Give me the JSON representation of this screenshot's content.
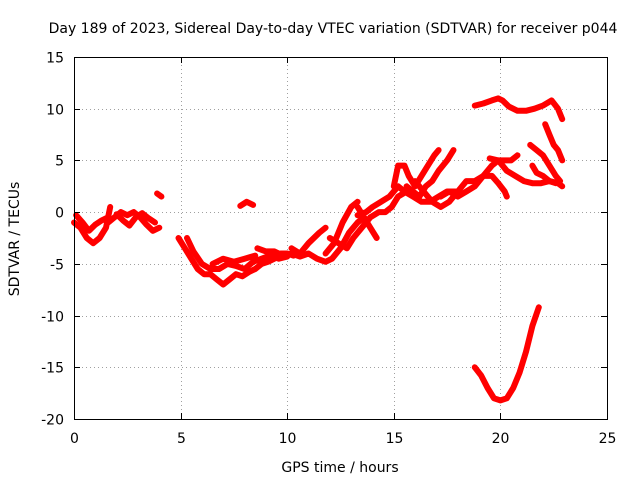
{
  "chart_data": {
    "type": "scatter",
    "title": "Day 189 of 2023, Sidereal Day-to-day VTEC variation (SDTVAR) for receiver p044",
    "xlabel": "GPS time / hours",
    "ylabel": "SDTVAR / TECUs",
    "xlim": [
      0,
      25
    ],
    "ylim": [
      -20,
      15
    ],
    "xticks": [
      0,
      5,
      10,
      15,
      20,
      25
    ],
    "yticks": [
      -20,
      -15,
      -10,
      -5,
      0,
      5,
      10,
      15
    ],
    "xtick_labels": [
      "0",
      "5",
      "10",
      "15",
      "20",
      "25"
    ],
    "ytick_labels": [
      "-20",
      "-15",
      "-10",
      "-5",
      "0",
      "5",
      "10",
      "15"
    ],
    "grid": true,
    "legend": "none",
    "color": "#ff0000",
    "series": [
      {
        "points": [
          [
            0.0,
            -1.0
          ],
          [
            0.3,
            -1.5
          ],
          [
            0.6,
            -2.5
          ],
          [
            0.9,
            -3.0
          ],
          [
            1.2,
            -2.5
          ],
          [
            1.5,
            -1.5
          ],
          [
            1.7,
            0.5
          ]
        ]
      },
      {
        "points": [
          [
            0.1,
            -0.3
          ],
          [
            0.4,
            -1.0
          ],
          [
            0.7,
            -1.8
          ],
          [
            1.0,
            -1.2
          ],
          [
            1.3,
            -0.8
          ],
          [
            1.6,
            -0.5
          ]
        ]
      },
      {
        "points": [
          [
            1.6,
            -1.0
          ],
          [
            1.9,
            -0.5
          ],
          [
            2.2,
            0.0
          ],
          [
            2.5,
            -0.3
          ],
          [
            2.8,
            0.0
          ],
          [
            3.1,
            -0.5
          ],
          [
            3.4,
            -1.2
          ],
          [
            3.7,
            -1.8
          ],
          [
            4.0,
            -1.5
          ]
        ]
      },
      {
        "points": [
          [
            2.0,
            -0.2
          ],
          [
            2.3,
            -0.8
          ],
          [
            2.6,
            -1.3
          ],
          [
            2.9,
            -0.5
          ],
          [
            3.2,
            -0.1
          ],
          [
            3.5,
            -0.6
          ],
          [
            3.8,
            -1.0
          ]
        ]
      },
      {
        "points": [
          [
            3.9,
            1.8
          ],
          [
            4.1,
            1.5
          ]
        ]
      },
      {
        "points": [
          [
            4.9,
            -2.5
          ],
          [
            5.2,
            -3.5
          ],
          [
            5.5,
            -4.5
          ],
          [
            5.8,
            -5.5
          ],
          [
            6.1,
            -6.0
          ],
          [
            6.4,
            -6.0
          ],
          [
            6.7,
            -6.5
          ],
          [
            7.0,
            -7.0
          ],
          [
            7.3,
            -6.5
          ],
          [
            7.6,
            -6.0
          ],
          [
            7.9,
            -6.2
          ],
          [
            8.2,
            -5.8
          ],
          [
            8.5,
            -5.5
          ],
          [
            8.8,
            -5.0
          ],
          [
            9.1,
            -4.8
          ],
          [
            9.4,
            -4.5
          ],
          [
            9.7,
            -4.0
          ],
          [
            10.0,
            -4.0
          ],
          [
            10.3,
            -4.2
          ]
        ]
      },
      {
        "points": [
          [
            5.3,
            -2.5
          ],
          [
            5.6,
            -3.8
          ],
          [
            6.0,
            -5.0
          ],
          [
            6.4,
            -5.5
          ],
          [
            6.8,
            -5.5
          ],
          [
            7.2,
            -5.0
          ],
          [
            7.6,
            -5.2
          ],
          [
            8.0,
            -5.5
          ],
          [
            8.4,
            -4.8
          ],
          [
            8.8,
            -4.5
          ],
          [
            9.2,
            -4.2
          ],
          [
            9.6,
            -4.5
          ],
          [
            10.0,
            -4.3
          ]
        ]
      },
      {
        "points": [
          [
            6.5,
            -5.0
          ],
          [
            7.0,
            -4.5
          ],
          [
            7.5,
            -4.8
          ],
          [
            8.0,
            -4.5
          ],
          [
            8.5,
            -4.2
          ]
        ]
      },
      {
        "points": [
          [
            7.8,
            0.6
          ],
          [
            8.1,
            1.0
          ],
          [
            8.4,
            0.7
          ]
        ]
      },
      {
        "points": [
          [
            8.6,
            -3.5
          ],
          [
            9.0,
            -3.8
          ],
          [
            9.4,
            -3.8
          ],
          [
            9.8,
            -4.2
          ],
          [
            10.2,
            -4.0
          ],
          [
            10.6,
            -4.3
          ],
          [
            11.0,
            -4.0
          ],
          [
            11.4,
            -4.5
          ],
          [
            11.8,
            -4.8
          ],
          [
            12.1,
            -4.5
          ],
          [
            12.5,
            -3.5
          ],
          [
            12.9,
            -2.0
          ],
          [
            13.3,
            -1.0
          ],
          [
            13.6,
            -0.5
          ]
        ]
      },
      {
        "points": [
          [
            10.2,
            -3.5
          ],
          [
            10.6,
            -4.0
          ],
          [
            11.0,
            -3.0
          ],
          [
            11.5,
            -2.0
          ],
          [
            11.8,
            -1.5
          ]
        ]
      },
      {
        "points": [
          [
            11.8,
            -4.0
          ],
          [
            12.2,
            -3.0
          ],
          [
            12.6,
            -1.0
          ],
          [
            13.0,
            0.5
          ],
          [
            13.3,
            1.0
          ]
        ]
      },
      {
        "points": [
          [
            12.0,
            -2.5
          ],
          [
            12.4,
            -3.0
          ],
          [
            12.8,
            -3.5
          ],
          [
            13.1,
            -2.5
          ],
          [
            13.5,
            -1.5
          ],
          [
            13.9,
            -0.5
          ],
          [
            14.3,
            0.0
          ],
          [
            14.6,
            0.0
          ],
          [
            14.9,
            0.5
          ],
          [
            15.2,
            1.5
          ],
          [
            15.6,
            2.0
          ]
        ]
      },
      {
        "points": [
          [
            13.3,
            0.5
          ],
          [
            13.6,
            -0.5
          ],
          [
            13.9,
            -1.5
          ],
          [
            14.2,
            -2.5
          ]
        ]
      },
      {
        "points": [
          [
            13.3,
            -0.3
          ],
          [
            13.7,
            0.0
          ],
          [
            14.0,
            0.5
          ],
          [
            14.4,
            1.0
          ],
          [
            14.8,
            1.5
          ],
          [
            15.2,
            2.5
          ],
          [
            15.5,
            2.0
          ],
          [
            15.9,
            1.5
          ],
          [
            16.3,
            1.0
          ],
          [
            16.7,
            1.0
          ],
          [
            17.1,
            1.5
          ],
          [
            17.5,
            2.0
          ],
          [
            17.9,
            2.0
          ]
        ]
      },
      {
        "points": [
          [
            15.0,
            2.5
          ],
          [
            15.2,
            4.5
          ],
          [
            15.5,
            4.5
          ],
          [
            15.7,
            3.5
          ],
          [
            16.0,
            2.5
          ],
          [
            16.3,
            3.5
          ],
          [
            16.6,
            4.5
          ],
          [
            16.9,
            5.5
          ],
          [
            17.1,
            6.0
          ]
        ]
      },
      {
        "points": [
          [
            15.6,
            2.5
          ],
          [
            15.9,
            2.0
          ],
          [
            16.2,
            1.5
          ],
          [
            16.5,
            2.5
          ],
          [
            16.8,
            3.0
          ],
          [
            17.1,
            4.0
          ],
          [
            17.5,
            5.0
          ],
          [
            17.8,
            6.0
          ]
        ]
      },
      {
        "points": [
          [
            16.0,
            3.0
          ],
          [
            16.4,
            2.0
          ],
          [
            16.8,
            1.0
          ],
          [
            17.2,
            0.5
          ],
          [
            17.6,
            1.0
          ],
          [
            18.0,
            2.0
          ],
          [
            18.4,
            3.0
          ],
          [
            18.8,
            3.0
          ],
          [
            19.2,
            3.5
          ],
          [
            19.6,
            3.5
          ],
          [
            19.9,
            2.8
          ],
          [
            20.2,
            2.0
          ],
          [
            20.3,
            1.5
          ]
        ]
      },
      {
        "points": [
          [
            17.2,
            1.5
          ],
          [
            17.6,
            2.0
          ],
          [
            18.0,
            1.5
          ],
          [
            18.4,
            2.0
          ],
          [
            18.8,
            2.5
          ],
          [
            19.2,
            3.5
          ],
          [
            19.6,
            4.5
          ],
          [
            19.9,
            5.0
          ],
          [
            20.2,
            5.0
          ],
          [
            20.5,
            5.0
          ],
          [
            20.8,
            5.5
          ]
        ]
      },
      {
        "points": [
          [
            18.8,
            10.3
          ],
          [
            19.2,
            10.5
          ],
          [
            19.6,
            10.8
          ],
          [
            19.9,
            11.0
          ],
          [
            20.1,
            10.8
          ],
          [
            20.4,
            10.2
          ],
          [
            20.8,
            9.8
          ],
          [
            21.2,
            9.8
          ],
          [
            21.6,
            10.0
          ],
          [
            22.0,
            10.3
          ],
          [
            22.4,
            10.8
          ],
          [
            22.7,
            10.0
          ],
          [
            22.9,
            9.0
          ]
        ]
      },
      {
        "points": [
          [
            19.5,
            5.2
          ],
          [
            19.9,
            5.0
          ],
          [
            20.3,
            4.0
          ],
          [
            20.7,
            3.5
          ],
          [
            21.1,
            3.0
          ],
          [
            21.5,
            2.8
          ],
          [
            21.9,
            2.8
          ],
          [
            22.3,
            3.0
          ],
          [
            22.7,
            2.8
          ],
          [
            22.9,
            2.5
          ]
        ]
      },
      {
        "points": [
          [
            21.4,
            6.5
          ],
          [
            21.7,
            6.0
          ],
          [
            22.0,
            5.5
          ],
          [
            22.3,
            4.5
          ],
          [
            22.6,
            3.5
          ],
          [
            22.8,
            3.0
          ]
        ]
      },
      {
        "points": [
          [
            21.5,
            4.5
          ],
          [
            21.7,
            3.8
          ],
          [
            22.0,
            3.5
          ],
          [
            22.3,
            3.0
          ],
          [
            22.6,
            2.8
          ]
        ]
      },
      {
        "points": [
          [
            22.1,
            8.5
          ],
          [
            22.3,
            7.5
          ],
          [
            22.5,
            6.5
          ],
          [
            22.7,
            6.0
          ],
          [
            22.9,
            5.0
          ]
        ]
      },
      {
        "points": [
          [
            18.8,
            -15.0
          ],
          [
            19.1,
            -15.8
          ],
          [
            19.4,
            -17.0
          ],
          [
            19.7,
            -18.0
          ],
          [
            20.0,
            -18.2
          ],
          [
            20.3,
            -18.0
          ],
          [
            20.6,
            -17.0
          ],
          [
            20.9,
            -15.5
          ],
          [
            21.2,
            -13.5
          ],
          [
            21.5,
            -11.0
          ],
          [
            21.8,
            -9.2
          ]
        ]
      }
    ]
  }
}
